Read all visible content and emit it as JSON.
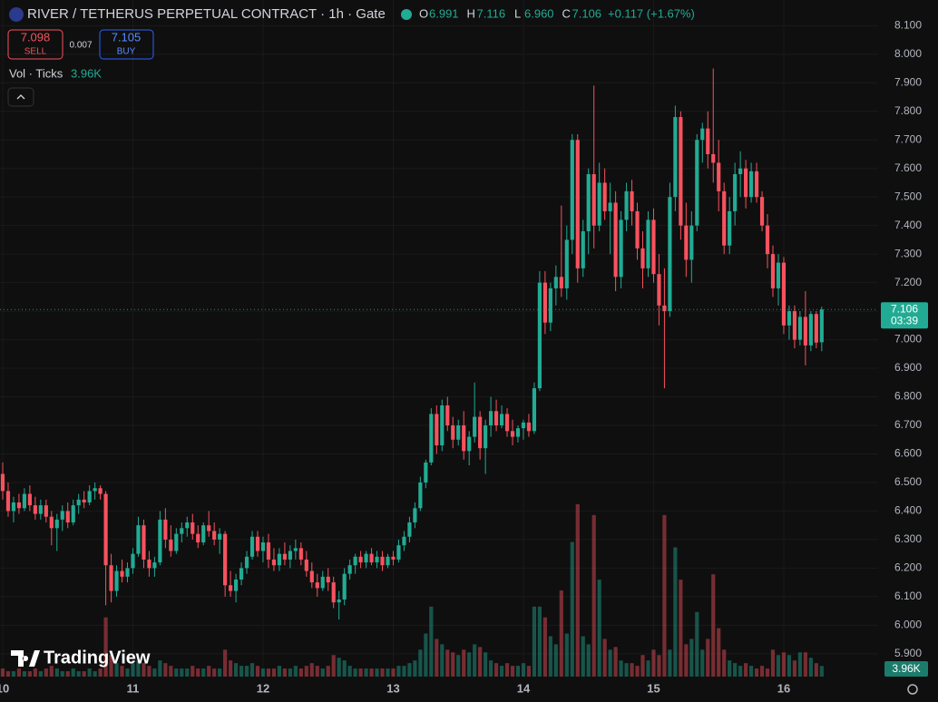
{
  "chart_data": {
    "type": "candlestick",
    "title": "RIVER / TETHERUS PERPETUAL CONTRACT · 1h · Gate",
    "ohlc_legend": [
      {
        "key": "O",
        "value": 6.991
      },
      {
        "key": "H",
        "value": 7.116
      },
      {
        "key": "L",
        "value": 6.96,
        "label": "6.960"
      },
      {
        "key": "C",
        "value": 7.106
      }
    ],
    "change_label": "+0.117 (+1.67%)",
    "sell": {
      "price": 7.098,
      "label": "SELL"
    },
    "spread": 0.007,
    "buy": {
      "price": 7.105,
      "label": "BUY"
    },
    "volume_title": "Vol · Ticks",
    "volume_label": "3.96K",
    "last_price": 7.106,
    "countdown": "03:39",
    "brand": "TradingView",
    "up_color": "#22ab94",
    "down_color": "#f7525f",
    "grid": true,
    "xlim": [
      -0.5,
      161.4
    ],
    "xticks": [
      {
        "value": 0,
        "label": "10"
      },
      {
        "value": 24,
        "label": "11"
      },
      {
        "value": 48,
        "label": "12"
      },
      {
        "value": 72,
        "label": "13"
      },
      {
        "value": 96,
        "label": "14"
      },
      {
        "value": 120,
        "label": "15"
      },
      {
        "value": 144,
        "label": "16"
      }
    ],
    "ylim": [
      5.82,
      8.19
    ],
    "yticks": [
      {
        "value": 8.1,
        "label": "8.100"
      },
      {
        "value": 8.0,
        "label": "8.000"
      },
      {
        "value": 7.9,
        "label": "7.900"
      },
      {
        "value": 7.8,
        "label": "7.800"
      },
      {
        "value": 7.7,
        "label": "7.700"
      },
      {
        "value": 7.6,
        "label": "7.600"
      },
      {
        "value": 7.5,
        "label": "7.500"
      },
      {
        "value": 7.4,
        "label": "7.400"
      },
      {
        "value": 7.3,
        "label": "7.300"
      },
      {
        "value": 7.2,
        "label": "7.200"
      },
      {
        "value": 7.1,
        "label": "7.100"
      },
      {
        "value": 7.0,
        "label": "7.000"
      },
      {
        "value": 6.9,
        "label": "6.900"
      },
      {
        "value": 6.8,
        "label": "6.800"
      },
      {
        "value": 6.7,
        "label": "6.700"
      },
      {
        "value": 6.6,
        "label": "6.600"
      },
      {
        "value": 6.5,
        "label": "6.500"
      },
      {
        "value": 6.4,
        "label": "6.400"
      },
      {
        "value": 6.3,
        "label": "6.300"
      },
      {
        "value": 6.2,
        "label": "6.200"
      },
      {
        "value": 6.1,
        "label": "6.100"
      },
      {
        "value": 6.0,
        "label": "6.000"
      },
      {
        "value": 5.9,
        "label": "5.900"
      }
    ],
    "candles": [
      [
        6.53,
        6.57,
        6.44,
        6.47
      ],
      [
        6.47,
        6.5,
        6.38,
        6.4
      ],
      [
        6.4,
        6.45,
        6.36,
        6.43
      ],
      [
        6.43,
        6.46,
        6.39,
        6.41
      ],
      [
        6.41,
        6.48,
        6.4,
        6.46
      ],
      [
        6.46,
        6.49,
        6.4,
        6.42
      ],
      [
        6.42,
        6.45,
        6.37,
        6.39
      ],
      [
        6.39,
        6.44,
        6.37,
        6.42
      ],
      [
        6.42,
        6.44,
        6.36,
        6.38
      ],
      [
        6.38,
        6.4,
        6.28,
        6.34
      ],
      [
        6.34,
        6.39,
        6.26,
        6.37
      ],
      [
        6.37,
        6.42,
        6.33,
        6.4
      ],
      [
        6.4,
        6.43,
        6.34,
        6.36
      ],
      [
        6.36,
        6.44,
        6.35,
        6.42
      ],
      [
        6.42,
        6.46,
        6.39,
        6.44
      ],
      [
        6.44,
        6.47,
        6.41,
        6.43
      ],
      [
        6.43,
        6.49,
        6.42,
        6.47
      ],
      [
        6.47,
        6.5,
        6.44,
        6.48
      ],
      [
        6.48,
        6.49,
        6.44,
        6.46
      ],
      [
        6.46,
        6.47,
        6.07,
        6.21
      ],
      [
        6.21,
        6.25,
        6.08,
        6.12
      ],
      [
        6.12,
        6.21,
        6.1,
        6.19
      ],
      [
        6.19,
        6.23,
        6.15,
        6.17
      ],
      [
        6.17,
        6.22,
        6.15,
        6.2
      ],
      [
        6.2,
        6.27,
        6.18,
        6.25
      ],
      [
        6.25,
        6.38,
        6.24,
        6.35
      ],
      [
        6.35,
        6.37,
        6.2,
        6.23
      ],
      [
        6.23,
        6.26,
        6.17,
        6.2
      ],
      [
        6.2,
        6.24,
        6.17,
        6.22
      ],
      [
        6.22,
        6.4,
        6.21,
        6.37
      ],
      [
        6.37,
        6.41,
        6.27,
        6.3
      ],
      [
        6.3,
        6.35,
        6.24,
        6.26
      ],
      [
        6.26,
        6.34,
        6.25,
        6.32
      ],
      [
        6.32,
        6.36,
        6.29,
        6.34
      ],
      [
        6.34,
        6.38,
        6.31,
        6.36
      ],
      [
        6.36,
        6.39,
        6.3,
        6.32
      ],
      [
        6.32,
        6.35,
        6.27,
        6.29
      ],
      [
        6.29,
        6.36,
        6.28,
        6.35
      ],
      [
        6.35,
        6.4,
        6.31,
        6.33
      ],
      [
        6.33,
        6.36,
        6.28,
        6.3
      ],
      [
        6.3,
        6.34,
        6.25,
        6.32
      ],
      [
        6.32,
        6.33,
        6.1,
        6.14
      ],
      [
        6.14,
        6.19,
        6.1,
        6.12
      ],
      [
        6.12,
        6.18,
        6.08,
        6.16
      ],
      [
        6.16,
        6.22,
        6.14,
        6.2
      ],
      [
        6.2,
        6.26,
        6.18,
        6.24
      ],
      [
        6.24,
        6.33,
        6.23,
        6.31
      ],
      [
        6.31,
        6.33,
        6.24,
        6.26
      ],
      [
        6.26,
        6.31,
        6.22,
        6.29
      ],
      [
        6.29,
        6.32,
        6.2,
        6.23
      ],
      [
        6.23,
        6.27,
        6.19,
        6.21
      ],
      [
        6.21,
        6.27,
        6.19,
        6.25
      ],
      [
        6.25,
        6.29,
        6.21,
        6.23
      ],
      [
        6.23,
        6.28,
        6.2,
        6.26
      ],
      [
        6.26,
        6.3,
        6.23,
        6.27
      ],
      [
        6.27,
        6.29,
        6.21,
        6.23
      ],
      [
        6.23,
        6.26,
        6.17,
        6.19
      ],
      [
        6.19,
        6.22,
        6.13,
        6.15
      ],
      [
        6.15,
        6.18,
        6.1,
        6.13
      ],
      [
        6.13,
        6.19,
        6.12,
        6.17
      ],
      [
        6.17,
        6.2,
        6.12,
        6.15
      ],
      [
        6.15,
        6.17,
        6.06,
        6.08
      ],
      [
        6.08,
        6.12,
        6.02,
        6.09
      ],
      [
        6.09,
        6.2,
        6.07,
        6.18
      ],
      [
        6.18,
        6.23,
        6.16,
        6.21
      ],
      [
        6.21,
        6.25,
        6.18,
        6.24
      ],
      [
        6.24,
        6.26,
        6.2,
        6.22
      ],
      [
        6.22,
        6.26,
        6.2,
        6.25
      ],
      [
        6.25,
        6.27,
        6.21,
        6.22
      ],
      [
        6.22,
        6.26,
        6.2,
        6.24
      ],
      [
        6.24,
        6.26,
        6.19,
        6.21
      ],
      [
        6.21,
        6.25,
        6.2,
        6.24
      ],
      [
        6.24,
        6.26,
        6.21,
        6.23
      ],
      [
        6.23,
        6.3,
        6.22,
        6.28
      ],
      [
        6.28,
        6.33,
        6.26,
        6.31
      ],
      [
        6.31,
        6.38,
        6.29,
        6.36
      ],
      [
        6.36,
        6.43,
        6.34,
        6.41
      ],
      [
        6.41,
        6.52,
        6.4,
        6.5
      ],
      [
        6.5,
        6.58,
        6.48,
        6.57
      ],
      [
        6.57,
        6.76,
        6.56,
        6.74
      ],
      [
        6.74,
        6.77,
        6.6,
        6.63
      ],
      [
        6.63,
        6.79,
        6.61,
        6.77
      ],
      [
        6.77,
        6.8,
        6.68,
        6.7
      ],
      [
        6.7,
        6.73,
        6.62,
        6.65
      ],
      [
        6.65,
        6.72,
        6.63,
        6.7
      ],
      [
        6.7,
        6.75,
        6.58,
        6.61
      ],
      [
        6.61,
        6.68,
        6.56,
        6.66
      ],
      [
        6.66,
        6.85,
        6.64,
        6.73
      ],
      [
        6.73,
        6.75,
        6.58,
        6.62
      ],
      [
        6.62,
        6.72,
        6.53,
        6.7
      ],
      [
        6.7,
        6.8,
        6.66,
        6.75
      ],
      [
        6.75,
        6.79,
        6.68,
        6.7
      ],
      [
        6.7,
        6.77,
        6.69,
        6.74
      ],
      [
        6.74,
        6.76,
        6.66,
        6.68
      ],
      [
        6.68,
        6.72,
        6.63,
        6.66
      ],
      [
        6.66,
        6.7,
        6.64,
        6.69
      ],
      [
        6.69,
        6.72,
        6.65,
        6.71
      ],
      [
        6.71,
        6.74,
        6.66,
        6.68
      ],
      [
        6.68,
        6.85,
        6.67,
        6.83
      ],
      [
        6.83,
        7.24,
        6.82,
        7.2
      ],
      [
        7.2,
        7.24,
        7.02,
        7.06
      ],
      [
        7.06,
        7.2,
        7.03,
        7.18
      ],
      [
        7.18,
        7.26,
        7.12,
        7.22
      ],
      [
        7.22,
        7.47,
        7.15,
        7.18
      ],
      [
        7.18,
        7.4,
        7.14,
        7.35
      ],
      [
        7.35,
        7.72,
        7.3,
        7.7
      ],
      [
        7.7,
        7.72,
        7.2,
        7.25
      ],
      [
        7.25,
        7.42,
        7.22,
        7.38
      ],
      [
        7.38,
        7.6,
        7.3,
        7.58
      ],
      [
        7.58,
        7.89,
        7.32,
        7.4
      ],
      [
        7.4,
        7.62,
        7.38,
        7.55
      ],
      [
        7.55,
        7.6,
        7.42,
        7.45
      ],
      [
        7.45,
        7.55,
        7.3,
        7.48
      ],
      [
        7.48,
        7.52,
        7.17,
        7.22
      ],
      [
        7.22,
        7.45,
        7.18,
        7.42
      ],
      [
        7.42,
        7.55,
        7.38,
        7.52
      ],
      [
        7.52,
        7.56,
        7.4,
        7.45
      ],
      [
        7.45,
        7.48,
        7.28,
        7.32
      ],
      [
        7.32,
        7.38,
        7.18,
        7.25
      ],
      [
        7.25,
        7.45,
        7.22,
        7.42
      ],
      [
        7.42,
        7.46,
        7.2,
        7.23
      ],
      [
        7.23,
        7.3,
        7.05,
        7.12
      ],
      [
        7.12,
        7.25,
        6.83,
        7.1
      ],
      [
        7.1,
        7.55,
        7.08,
        7.5
      ],
      [
        7.5,
        7.82,
        7.45,
        7.78
      ],
      [
        7.78,
        7.8,
        7.35,
        7.4
      ],
      [
        7.4,
        7.48,
        7.22,
        7.28
      ],
      [
        7.28,
        7.45,
        7.2,
        7.4
      ],
      [
        7.4,
        7.72,
        7.38,
        7.7
      ],
      [
        7.7,
        7.76,
        7.62,
        7.74
      ],
      [
        7.74,
        7.8,
        7.6,
        7.65
      ],
      [
        7.65,
        7.95,
        7.55,
        7.62
      ],
      [
        7.62,
        7.7,
        7.45,
        7.52
      ],
      [
        7.52,
        7.55,
        7.3,
        7.33
      ],
      [
        7.33,
        7.5,
        7.3,
        7.45
      ],
      [
        7.45,
        7.62,
        7.4,
        7.58
      ],
      [
        7.58,
        7.66,
        7.5,
        7.6
      ],
      [
        7.6,
        7.63,
        7.46,
        7.5
      ],
      [
        7.5,
        7.62,
        7.48,
        7.59
      ],
      [
        7.59,
        7.62,
        7.48,
        7.5
      ],
      [
        7.5,
        7.52,
        7.38,
        7.4
      ],
      [
        7.4,
        7.44,
        7.25,
        7.3
      ],
      [
        7.3,
        7.33,
        7.15,
        7.18
      ],
      [
        7.18,
        7.3,
        7.12,
        7.27
      ],
      [
        7.27,
        7.29,
        7.02,
        7.05
      ],
      [
        7.05,
        7.12,
        7.0,
        7.1
      ],
      [
        7.1,
        7.12,
        6.97,
        7.0
      ],
      [
        7.0,
        7.1,
        6.98,
        7.08
      ],
      [
        7.08,
        7.17,
        6.91,
        6.98
      ],
      [
        6.98,
        7.1,
        6.96,
        7.09
      ],
      [
        7.09,
        7.1,
        6.97,
        6.99
      ],
      [
        6.991,
        7.116,
        6.96,
        7.106
      ]
    ],
    "volume": [
      3,
      2,
      2,
      3,
      2,
      2,
      3,
      2,
      3,
      4,
      3,
      2,
      2,
      3,
      2,
      2,
      3,
      2,
      3,
      22,
      8,
      5,
      4,
      3,
      5,
      6,
      5,
      4,
      3,
      6,
      5,
      4,
      3,
      3,
      3,
      4,
      3,
      3,
      4,
      3,
      3,
      10,
      6,
      5,
      4,
      4,
      5,
      4,
      3,
      3,
      3,
      4,
      3,
      3,
      4,
      3,
      4,
      5,
      4,
      3,
      4,
      8,
      7,
      6,
      4,
      3,
      3,
      3,
      3,
      3,
      3,
      3,
      3,
      4,
      4,
      5,
      6,
      10,
      16,
      26,
      14,
      12,
      10,
      9,
      8,
      10,
      9,
      12,
      11,
      9,
      6,
      5,
      4,
      5,
      4,
      4,
      5,
      4,
      26,
      26,
      22,
      15,
      12,
      32,
      16,
      50,
      64,
      15,
      12,
      60,
      36,
      14,
      10,
      11,
      6,
      5,
      5,
      4,
      8,
      6,
      10,
      8,
      60,
      10,
      48,
      36,
      12,
      14,
      24,
      10,
      14,
      38,
      18,
      10,
      6,
      5,
      4,
      5,
      4,
      3,
      4,
      3,
      10,
      8,
      9,
      8,
      6,
      9,
      9,
      7,
      5,
      3.96
    ]
  }
}
